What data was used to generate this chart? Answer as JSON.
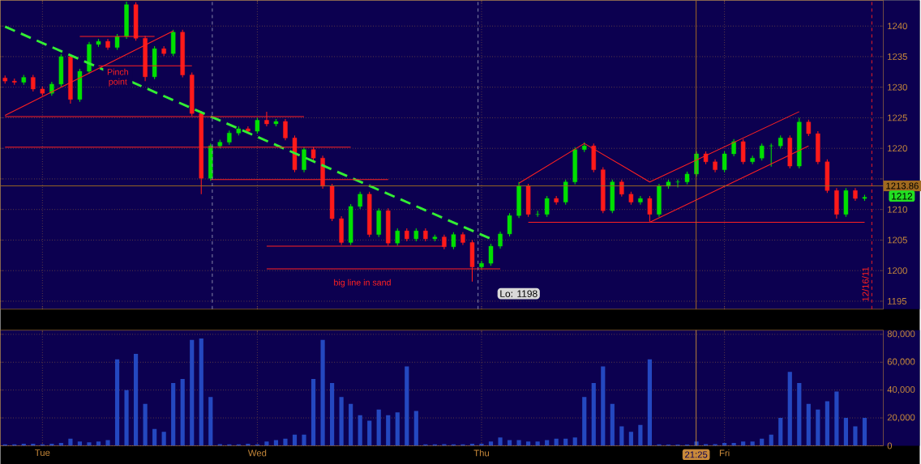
{
  "chart_data": [
    {
      "type": "candlestick",
      "categories": [
        null,
        null,
        null,
        null,
        null,
        null,
        null,
        null,
        null,
        null,
        null,
        null,
        null,
        null,
        null,
        null,
        null,
        null,
        null,
        null,
        null,
        null,
        null,
        null,
        null,
        null,
        null,
        null,
        null,
        null,
        null,
        null,
        null,
        null,
        null,
        null,
        null,
        null,
        null,
        null,
        null,
        null,
        null,
        null,
        null,
        null,
        null,
        null,
        null,
        null,
        null,
        null,
        null,
        null,
        null,
        null,
        null,
        null,
        null,
        null,
        null,
        null,
        null,
        null,
        null,
        null,
        null,
        null,
        null,
        null,
        null,
        null,
        null,
        null,
        null,
        null,
        null,
        null,
        null,
        null,
        null,
        null,
        null,
        null,
        null,
        null,
        null,
        null,
        null,
        null,
        null,
        null,
        null
      ],
      "ohlc": [
        [
          1231.5,
          1231.9,
          1230.6,
          1231.0
        ],
        [
          1231.0,
          1231.4,
          1230.4,
          1230.8
        ],
        [
          1230.8,
          1232.0,
          1230.4,
          1231.6
        ],
        [
          1231.6,
          1232.0,
          1229.3,
          1229.7
        ],
        [
          1229.7,
          1230.1,
          1228.6,
          1229.0
        ],
        [
          1229.0,
          1230.9,
          1228.6,
          1230.5
        ],
        [
          1230.5,
          1235.4,
          1230.1,
          1235.0
        ],
        [
          1235.0,
          1235.4,
          1227.3,
          1228.0
        ],
        [
          1228.0,
          1233.0,
          1227.6,
          1232.6
        ],
        [
          1232.6,
          1237.4,
          1232.2,
          1237.0
        ],
        [
          1237.0,
          1237.9,
          1236.6,
          1237.5
        ],
        [
          1237.5,
          1237.9,
          1236.1,
          1236.5
        ],
        [
          1236.5,
          1238.7,
          1236.1,
          1238.3
        ],
        [
          1238.3,
          1244.0,
          1237.9,
          1243.5
        ],
        [
          1243.5,
          1243.9,
          1237.6,
          1238.0
        ],
        [
          1238.0,
          1238.4,
          1231.0,
          1231.7
        ],
        [
          1231.7,
          1236.7,
          1231.3,
          1236.3
        ],
        [
          1236.3,
          1236.7,
          1235.1,
          1235.5
        ],
        [
          1235.5,
          1239.4,
          1235.1,
          1239.0
        ],
        [
          1239.0,
          1239.4,
          1231.6,
          1232.0
        ],
        [
          1232.0,
          1232.4,
          1225.3,
          1225.7
        ],
        [
          1225.7,
          1226.1,
          1212.5,
          1215.1
        ],
        [
          1215.1,
          1220.8,
          1214.7,
          1220.4
        ],
        [
          1220.4,
          1221.4,
          1220.0,
          1221.0
        ],
        [
          1221.0,
          1222.9,
          1220.6,
          1222.5
        ],
        [
          1222.5,
          1223.6,
          1222.1,
          1223.2
        ],
        [
          1223.2,
          1223.6,
          1222.4,
          1222.8
        ],
        [
          1222.8,
          1225.0,
          1222.4,
          1224.6
        ],
        [
          1224.6,
          1226.0,
          1223.6,
          1224.0
        ],
        [
          1224.0,
          1224.8,
          1223.6,
          1224.4
        ],
        [
          1224.4,
          1224.8,
          1221.3,
          1221.7
        ],
        [
          1221.7,
          1222.1,
          1216.1,
          1216.5
        ],
        [
          1216.5,
          1220.2,
          1216.1,
          1219.8
        ],
        [
          1219.8,
          1220.2,
          1218.0,
          1218.4
        ],
        [
          1218.4,
          1218.8,
          1213.4,
          1213.8
        ],
        [
          1213.8,
          1214.2,
          1208.1,
          1208.5
        ],
        [
          1208.5,
          1208.9,
          1204.2,
          1204.6
        ],
        [
          1204.6,
          1210.9,
          1204.2,
          1210.5
        ],
        [
          1210.5,
          1212.9,
          1210.1,
          1212.5
        ],
        [
          1212.5,
          1212.9,
          1205.5,
          1205.9
        ],
        [
          1205.9,
          1210.2,
          1205.5,
          1209.8
        ],
        [
          1209.8,
          1210.2,
          1204.1,
          1204.5
        ],
        [
          1204.5,
          1206.9,
          1204.1,
          1206.5
        ],
        [
          1206.5,
          1206.9,
          1204.8,
          1205.2
        ],
        [
          1205.2,
          1206.9,
          1204.8,
          1206.5
        ],
        [
          1206.5,
          1206.9,
          1204.8,
          1205.2
        ],
        [
          1205.2,
          1205.9,
          1204.8,
          1205.5
        ],
        [
          1205.5,
          1205.9,
          1203.5,
          1203.9
        ],
        [
          1203.9,
          1206.3,
          1203.5,
          1205.9
        ],
        [
          1205.9,
          1206.3,
          1204.2,
          1204.6
        ],
        [
          1204.6,
          1205.0,
          1198.2,
          1200.6
        ],
        [
          1200.6,
          1201.6,
          1200.2,
          1201.2
        ],
        [
          1201.2,
          1204.4,
          1200.8,
          1204.0
        ],
        [
          1204.0,
          1206.4,
          1203.6,
          1206.0
        ],
        [
          1206.0,
          1209.4,
          1205.6,
          1209.0
        ],
        [
          1209.0,
          1214.5,
          1208.6,
          1213.8
        ],
        [
          1213.8,
          1214.2,
          1208.8,
          1209.2
        ],
        [
          1209.2,
          1209.8,
          1208.8,
          1209.2
        ],
        [
          1209.2,
          1212.2,
          1208.8,
          1211.8
        ],
        [
          1211.8,
          1212.2,
          1210.8,
          1211.2
        ],
        [
          1211.2,
          1214.9,
          1210.8,
          1214.5
        ],
        [
          1214.5,
          1220.2,
          1214.1,
          1219.8
        ],
        [
          1219.8,
          1221.0,
          1219.4,
          1220.4
        ],
        [
          1220.4,
          1220.8,
          1216.1,
          1216.5
        ],
        [
          1216.5,
          1216.9,
          1209.4,
          1209.8
        ],
        [
          1209.8,
          1214.9,
          1209.4,
          1214.5
        ],
        [
          1214.5,
          1214.9,
          1212.1,
          1212.5
        ],
        [
          1212.5,
          1212.9,
          1210.8,
          1211.2
        ],
        [
          1211.2,
          1212.2,
          1210.8,
          1211.8
        ],
        [
          1211.8,
          1212.2,
          1208.0,
          1209.2
        ],
        [
          1209.2,
          1214.2,
          1208.8,
          1213.8
        ],
        [
          1213.8,
          1214.9,
          1213.4,
          1214.5
        ],
        [
          1214.5,
          1214.9,
          1213.6,
          1214.5
        ],
        [
          1214.5,
          1216.2,
          1214.1,
          1215.8
        ],
        [
          1215.8,
          1219.5,
          1215.4,
          1219.1
        ],
        [
          1219.1,
          1219.5,
          1217.4,
          1217.8
        ],
        [
          1217.8,
          1218.2,
          1216.1,
          1216.5
        ],
        [
          1216.5,
          1219.5,
          1216.1,
          1219.1
        ],
        [
          1219.1,
          1221.5,
          1218.7,
          1221.1
        ],
        [
          1221.1,
          1221.5,
          1217.4,
          1217.8
        ],
        [
          1217.8,
          1218.8,
          1217.4,
          1218.4
        ],
        [
          1218.4,
          1220.8,
          1218.0,
          1220.4
        ],
        [
          1220.4,
          1220.8,
          1217.0,
          1220.4
        ],
        [
          1220.4,
          1222.1,
          1220.0,
          1221.7
        ],
        [
          1221.7,
          1222.1,
          1216.7,
          1217.1
        ],
        [
          1217.1,
          1225.0,
          1216.7,
          1224.3
        ],
        [
          1224.3,
          1224.7,
          1222.0,
          1222.4
        ],
        [
          1222.4,
          1222.8,
          1217.4,
          1217.8
        ],
        [
          1217.8,
          1218.2,
          1212.7,
          1213.1
        ],
        [
          1213.1,
          1213.5,
          1208.5,
          1209.2
        ],
        [
          1209.2,
          1213.5,
          1208.8,
          1213.1
        ],
        [
          1213.1,
          1213.5,
          1211.4,
          1211.8
        ],
        [
          1211.8,
          1212.4,
          1211.4,
          1212.0
        ]
      ],
      "colors": [
        "#ff1a1a",
        "#ff1a1a",
        "#00e000",
        "#ff1a1a",
        "#ff1a1a",
        "#00e000",
        "#00e000",
        "#ff1a1a",
        "#00e000",
        "#00e000",
        "#00e000",
        "#ff1a1a",
        "#00e000",
        "#00e000",
        "#ff1a1a",
        "#ff1a1a",
        "#00e000",
        "#ff1a1a",
        "#00e000",
        "#ff1a1a",
        "#ff1a1a",
        "#ff1a1a",
        "#00e000",
        "#00e000",
        "#00e000",
        "#00e000",
        "#ff1a1a",
        "#00e000",
        "#ff1a1a",
        "#00e000",
        "#ff1a1a",
        "#ff1a1a",
        "#00e000",
        "#ff1a1a",
        "#ff1a1a",
        "#ff1a1a",
        "#ff1a1a",
        "#00e000",
        "#00e000",
        "#ff1a1a",
        "#00e000",
        "#ff1a1a",
        "#00e000",
        "#ff1a1a",
        "#00e000",
        "#ff1a1a",
        "#00e000",
        "#ff1a1a",
        "#00e000",
        "#ff1a1a",
        "#ff1a1a",
        "#00e000",
        "#00e000",
        "#00e000",
        "#00e000",
        "#00e000",
        "#ff1a1a",
        "#00e000",
        "#00e000",
        "#ff1a1a",
        "#00e000",
        "#00e000",
        "#00e000",
        "#ff1a1a",
        "#ff1a1a",
        "#00e000",
        "#ff1a1a",
        "#ff1a1a",
        "#00e000",
        "#ff1a1a",
        "#00e000",
        "#00e000",
        "#00e000",
        "#00e000",
        "#00e000",
        "#ff1a1a",
        "#ff1a1a",
        "#00e000",
        "#00e000",
        "#ff1a1a",
        "#00e000",
        "#00e000",
        "#00e000",
        "#00e000",
        "#ff1a1a",
        "#00e000",
        "#ff1a1a",
        "#ff1a1a",
        "#ff1a1a",
        "#ff1a1a",
        "#00e000",
        "#ff1a1a",
        "#00e000"
      ],
      "series": [
        {
          "type": "line",
          "values": [
            1239.9,
            null,
            null,
            null,
            null,
            null,
            null,
            null,
            null,
            null,
            null,
            null,
            null,
            null,
            null,
            null,
            null,
            null,
            null,
            null,
            null,
            null,
            null,
            null,
            null,
            null,
            null,
            null,
            null,
            null,
            null,
            null,
            null,
            null,
            null,
            null,
            null,
            null,
            null,
            null,
            null,
            null,
            null,
            null,
            null,
            null,
            null,
            null,
            null,
            null,
            null,
            null,
            1205.2,
            null,
            null,
            null,
            null,
            null,
            null,
            null,
            null,
            null,
            null,
            null,
            null,
            null,
            null,
            null,
            null,
            null,
            null,
            null,
            null,
            null,
            null,
            null,
            null,
            null,
            null,
            null,
            null,
            null,
            null,
            null,
            null,
            null,
            null,
            null,
            null,
            null,
            null,
            null,
            null
          ],
          "color": "#33ee33",
          "line_style": "dashed"
        },
        {
          "type": "line",
          "values": [
            1225.2,
            null,
            null,
            null,
            null,
            null,
            null,
            null,
            null,
            null,
            null,
            null,
            null,
            null,
            null,
            null,
            null,
            null,
            null,
            null,
            null,
            null,
            null,
            null,
            null,
            null,
            null,
            null,
            null,
            null,
            null,
            null,
            1225.2,
            null,
            null,
            null,
            null,
            null,
            null,
            null,
            null,
            null,
            null,
            null,
            null,
            null,
            null,
            null,
            null,
            null,
            null,
            null,
            null,
            null,
            null,
            null,
            null,
            null,
            null,
            null,
            null,
            null,
            null,
            null,
            null,
            null,
            null,
            null,
            null,
            null,
            null,
            null,
            null,
            null,
            null,
            null,
            null,
            null,
            null,
            null,
            null,
            null,
            null,
            null,
            null,
            null,
            null,
            null,
            null,
            null,
            null,
            null,
            null
          ],
          "color": "#ff2020",
          "line_style": "solid"
        },
        {
          "type": "line",
          "values": [
            1220.2,
            null,
            null,
            null,
            null,
            null,
            null,
            null,
            null,
            null,
            null,
            null,
            null,
            null,
            null,
            null,
            null,
            null,
            null,
            null,
            null,
            null,
            null,
            null,
            null,
            null,
            null,
            null,
            null,
            null,
            null,
            null,
            null,
            null,
            null,
            null,
            null,
            1220.2,
            null,
            null,
            null,
            null,
            null,
            null,
            null,
            null,
            null,
            null,
            null,
            null,
            null,
            null,
            null,
            null,
            null,
            null,
            null,
            null,
            null,
            null,
            null,
            null,
            null,
            null,
            null,
            null,
            null,
            null,
            null,
            null,
            null,
            null,
            null,
            null,
            null,
            null,
            null,
            null,
            null,
            null,
            null,
            null,
            null,
            null,
            null,
            null,
            null,
            null,
            null,
            null,
            null,
            null,
            null
          ],
          "color": "#ff2020",
          "line_style": "solid"
        },
        {
          "type": "line",
          "values": [
            null,
            null,
            null,
            null,
            null,
            null,
            null,
            null,
            null,
            null,
            null,
            null,
            null,
            null,
            null,
            null,
            null,
            null,
            null,
            null,
            null,
            null,
            1214.9,
            null,
            null,
            null,
            null,
            null,
            null,
            null,
            null,
            null,
            null,
            null,
            null,
            null,
            null,
            null,
            null,
            null,
            null,
            1214.9,
            null,
            null,
            null,
            null,
            null,
            null,
            null,
            null,
            null,
            null,
            null,
            null,
            null,
            null,
            null,
            null,
            null,
            null,
            null,
            null,
            null,
            null,
            null,
            null,
            null,
            null,
            null,
            null,
            null,
            null,
            null,
            null,
            null,
            null,
            null,
            null,
            null,
            null,
            null,
            null,
            null,
            null,
            null,
            null,
            null,
            null,
            null,
            null,
            null,
            null,
            null
          ],
          "color": "#ff2020",
          "line_style": "solid"
        },
        {
          "type": "line",
          "values": [
            null,
            null,
            null,
            null,
            null,
            null,
            null,
            null,
            null,
            null,
            null,
            null,
            null,
            null,
            null,
            null,
            null,
            null,
            null,
            null,
            null,
            null,
            null,
            null,
            null,
            null,
            null,
            null,
            1204.0,
            null,
            null,
            null,
            null,
            null,
            null,
            null,
            null,
            null,
            null,
            null,
            null,
            null,
            null,
            null,
            null,
            null,
            null,
            1204.0,
            null,
            null,
            null,
            null,
            null,
            null,
            null,
            null,
            null,
            null,
            null,
            null,
            null,
            null,
            null,
            null,
            null,
            null,
            null,
            null,
            null,
            null,
            null,
            null,
            null,
            null,
            null,
            null,
            null,
            null,
            null,
            null,
            null,
            null,
            null,
            null,
            null,
            null,
            null,
            null,
            null,
            null,
            null,
            null,
            null
          ],
          "color": "#ff2020",
          "line_style": "solid"
        },
        {
          "type": "line",
          "values": [
            null,
            null,
            null,
            null,
            null,
            null,
            null,
            null,
            null,
            null,
            null,
            null,
            null,
            null,
            null,
            null,
            null,
            null,
            null,
            null,
            null,
            null,
            null,
            null,
            null,
            null,
            null,
            null,
            1200.3,
            null,
            null,
            null,
            null,
            null,
            null,
            null,
            null,
            null,
            null,
            null,
            null,
            null,
            null,
            null,
            null,
            null,
            null,
            null,
            null,
            null,
            null,
            null,
            null,
            1200.3,
            null,
            null,
            null,
            null,
            null,
            null,
            null,
            null,
            null,
            null,
            null,
            null,
            null,
            null,
            null,
            null,
            null,
            null,
            null,
            null,
            null,
            null,
            null,
            null,
            null,
            null,
            null,
            null,
            null,
            null,
            null,
            null,
            null,
            null,
            null,
            null,
            null,
            null,
            null
          ],
          "color": "#ff2020",
          "line_style": "solid"
        },
        {
          "type": "line",
          "values": [
            null,
            null,
            null,
            null,
            null,
            null,
            null,
            null,
            null,
            null,
            null,
            null,
            null,
            null,
            null,
            null,
            null,
            null,
            null,
            null,
            null,
            null,
            null,
            null,
            null,
            null,
            null,
            null,
            null,
            null,
            null,
            null,
            null,
            null,
            null,
            null,
            null,
            null,
            null,
            null,
            null,
            null,
            null,
            null,
            null,
            null,
            null,
            null,
            null,
            null,
            null,
            null,
            null,
            null,
            null,
            null,
            1207.9,
            null,
            null,
            null,
            null,
            null,
            null,
            null,
            null,
            null,
            null,
            null,
            null,
            null,
            null,
            null,
            null,
            null,
            null,
            null,
            null,
            null,
            null,
            null,
            null,
            null,
            null,
            null,
            null,
            null,
            null,
            null,
            null,
            null,
            null,
            null,
            1207.9
          ],
          "color": "#ff2020",
          "line_style": "solid"
        },
        {
          "type": "line",
          "values": [
            null,
            null,
            null,
            null,
            null,
            null,
            null,
            null,
            1238.3,
            null,
            null,
            null,
            null,
            null,
            null,
            null,
            1238.3,
            null,
            null,
            null,
            null,
            null,
            null,
            null,
            null,
            null,
            null,
            null,
            null,
            null,
            null,
            null,
            null,
            null,
            null,
            null,
            null,
            null,
            null,
            null,
            null,
            null,
            null,
            null,
            null,
            null,
            null,
            null,
            null,
            null,
            null,
            null,
            null,
            null,
            null,
            null,
            null,
            null,
            null,
            null,
            null,
            null,
            null,
            null,
            null,
            null,
            null,
            null,
            null,
            null,
            null,
            null,
            null,
            null,
            null,
            null,
            null,
            null,
            null,
            null,
            null,
            null,
            null,
            null,
            null,
            null,
            null,
            null,
            null,
            null,
            null,
            null,
            null
          ],
          "color": "#ff2020",
          "line_style": "solid"
        },
        {
          "type": "line",
          "values": [
            null,
            null,
            null,
            null,
            null,
            null,
            null,
            null,
            null,
            null,
            1233.5,
            null,
            null,
            null,
            null,
            null,
            null,
            null,
            null,
            null,
            1233.5,
            null,
            null,
            null,
            null,
            null,
            null,
            null,
            null,
            null,
            null,
            null,
            null,
            null,
            null,
            null,
            null,
            null,
            null,
            null,
            null,
            null,
            null,
            null,
            null,
            null,
            null,
            null,
            null,
            null,
            null,
            null,
            null,
            null,
            null,
            null,
            null,
            null,
            null,
            null,
            null,
            null,
            null,
            null,
            null,
            null,
            null,
            null,
            null,
            null,
            null,
            null,
            null,
            null,
            null,
            null,
            null,
            null,
            null,
            null,
            null,
            null,
            null,
            null,
            null,
            null,
            null,
            null,
            null,
            null,
            null,
            null,
            null
          ],
          "color": "#ff2020",
          "line_style": "solid"
        },
        {
          "type": "line",
          "values": [
            1225.4,
            null,
            null,
            null,
            null,
            null,
            null,
            null,
            null,
            null,
            null,
            null,
            null,
            null,
            null,
            null,
            null,
            null,
            1239.2,
            null,
            null,
            null,
            null,
            null,
            null,
            null,
            null,
            null,
            null,
            null,
            null,
            null,
            null,
            null,
            null,
            null,
            null,
            null,
            null,
            null,
            null,
            null,
            null,
            null,
            null,
            null,
            null,
            null,
            null,
            null,
            null,
            null,
            null,
            null,
            null,
            null,
            null,
            null,
            null,
            null,
            null,
            null,
            null,
            null,
            null,
            null,
            null,
            null,
            null,
            null,
            null,
            null,
            null,
            null,
            null,
            null,
            null,
            null,
            null,
            null,
            null,
            null,
            null,
            null,
            null,
            null,
            null,
            null,
            null,
            null,
            null,
            null,
            null
          ],
          "color": "#ff2020",
          "line_style": "solid"
        },
        {
          "type": "line",
          "values": [
            null,
            null,
            null,
            null,
            null,
            null,
            null,
            null,
            null,
            null,
            null,
            null,
            null,
            null,
            null,
            null,
            null,
            null,
            null,
            null,
            null,
            null,
            null,
            null,
            null,
            null,
            null,
            null,
            null,
            null,
            null,
            null,
            null,
            null,
            null,
            null,
            null,
            null,
            null,
            null,
            null,
            null,
            null,
            null,
            null,
            null,
            null,
            null,
            null,
            null,
            null,
            null,
            null,
            null,
            null,
            1214.3,
            null,
            null,
            null,
            null,
            null,
            null,
            1220.8,
            null,
            null,
            null,
            null,
            null,
            null,
            1214.5,
            null,
            null,
            null,
            null,
            null,
            null,
            null,
            null,
            null,
            null,
            null,
            null,
            null,
            null,
            null,
            1226.0,
            null,
            null,
            null,
            null,
            null,
            null,
            null
          ],
          "color": "#ff2020",
          "line_style": "solid"
        },
        {
          "type": "line",
          "values": [
            null,
            null,
            null,
            null,
            null,
            null,
            null,
            null,
            null,
            null,
            null,
            null,
            null,
            null,
            null,
            null,
            null,
            null,
            null,
            null,
            null,
            null,
            null,
            null,
            null,
            null,
            null,
            null,
            null,
            null,
            null,
            null,
            null,
            null,
            null,
            null,
            null,
            null,
            null,
            null,
            null,
            null,
            null,
            null,
            null,
            null,
            null,
            null,
            null,
            null,
            null,
            null,
            null,
            null,
            null,
            null,
            null,
            null,
            null,
            null,
            null,
            null,
            null,
            null,
            null,
            null,
            null,
            null,
            null,
            1207.9,
            null,
            null,
            null,
            null,
            null,
            null,
            null,
            null,
            null,
            null,
            null,
            null,
            null,
            null,
            null,
            null,
            1220.4,
            null,
            null,
            null,
            null,
            null,
            null
          ],
          "color": "#ff2020",
          "line_style": "solid"
        }
      ],
      "ylim": [
        1193.7,
        1244.2
      ],
      "yticks": [
        1195,
        1200,
        1205,
        1210,
        {
          "value": 1215,
          "label": null
        },
        1220,
        1225,
        1230,
        1235,
        1240
      ],
      "tick_labels": "y",
      "grid": true,
      "ref_lines": [
        {
          "axis": "y",
          "value": 1213.86,
          "label": "1213.86",
          "color": "#a06a20",
          "line_style": "solid"
        }
      ],
      "annotations": [
        "Pinch point",
        "big line in sand",
        "Lo: 1198",
        "1212",
        "12/16/11"
      ]
    },
    {
      "type": "bar",
      "categories": [
        null,
        null,
        null,
        null,
        "Tue",
        null,
        null,
        null,
        null,
        null,
        null,
        null,
        null,
        null,
        null,
        null,
        null,
        null,
        null,
        null,
        null,
        null,
        null,
        null,
        null,
        null,
        null,
        "Wed",
        null,
        null,
        null,
        null,
        null,
        null,
        null,
        null,
        null,
        null,
        null,
        null,
        null,
        null,
        null,
        null,
        null,
        null,
        null,
        null,
        null,
        null,
        null,
        "Thu",
        null,
        null,
        null,
        null,
        null,
        null,
        null,
        null,
        null,
        null,
        null,
        null,
        null,
        null,
        null,
        null,
        null,
        null,
        null,
        null,
        null,
        null,
        null,
        null,
        null,
        "Fri",
        null,
        null,
        null,
        null,
        null,
        null,
        null,
        null,
        null,
        null,
        null,
        null,
        null,
        null,
        null
      ],
      "values": [
        1000,
        1000,
        1500,
        1500,
        1000,
        1500,
        2000,
        5000,
        3000,
        2500,
        3000,
        4000,
        62000,
        40000,
        66000,
        30000,
        12000,
        10000,
        45000,
        48000,
        76000,
        77000,
        35000,
        1200,
        1000,
        1000,
        1500,
        1000,
        3000,
        4000,
        5000,
        8000,
        8000,
        48000,
        76000,
        45000,
        35000,
        30000,
        22000,
        18000,
        26000,
        22000,
        24000,
        57000,
        25000,
        1000,
        1000,
        1200,
        1000,
        1000,
        1500,
        1500,
        3000,
        6000,
        4000,
        4000,
        3000,
        3000,
        4000,
        5000,
        5000,
        6000,
        35000,
        45000,
        57000,
        30000,
        14000,
        10000,
        15000,
        62000,
        1000,
        800,
        800,
        800,
        3000,
        1200,
        1200,
        2000,
        2000,
        3000,
        3000,
        5000,
        8000,
        20000,
        53000,
        45000,
        30000,
        26000,
        32000,
        39000,
        20000,
        14000,
        20000
      ],
      "color": "#2448c0",
      "ylim": [
        0,
        83000
      ],
      "yticks": [
        0,
        {
          "value": 20000,
          "label": "20,000"
        },
        {
          "value": 40000,
          "label": "40,000"
        },
        {
          "value": 60000,
          "label": "60,000"
        },
        {
          "value": 80000,
          "label": "80,000"
        }
      ],
      "grid": true,
      "annotations": [
        "21:25"
      ]
    }
  ]
}
